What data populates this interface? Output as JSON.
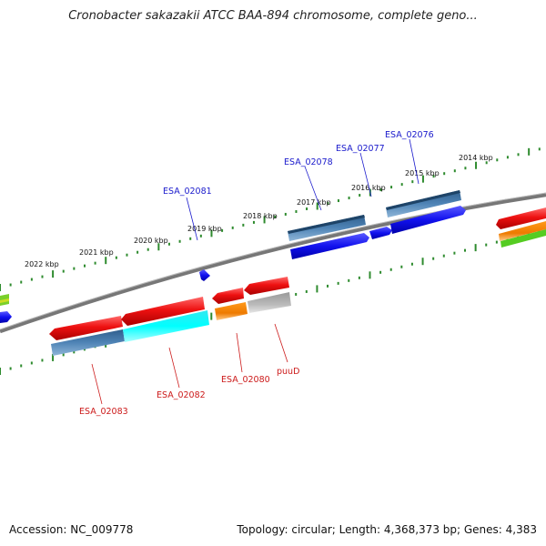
{
  "title": "Cronobacter sakazakii ATCC BAA-894 chromosome, complete geno...",
  "footer": {
    "accession": "Accession: NC_009778",
    "topology": "Topology: circular; Length: 4,368,373 bp; Genes: 4,383"
  },
  "colors": {
    "backbone": "#888888",
    "ticks": "#2e8b2e",
    "upper_label": "#1a1acc",
    "lower_label": "#cc1a1a"
  },
  "kbp_ticks": [
    "2022 kbp",
    "2021 kbp",
    "2020 kbp",
    "2019 kbp",
    "2018 kbp",
    "2017 kbp",
    "2016 kbp",
    "2015 kbp",
    "2014 kbp"
  ],
  "upper_labels": [
    "ESA_02081",
    "ESA_02078",
    "ESA_02077",
    "ESA_02076"
  ],
  "lower_labels": [
    "ESA_02083",
    "ESA_02082",
    "ESA_02080",
    "puuD"
  ]
}
